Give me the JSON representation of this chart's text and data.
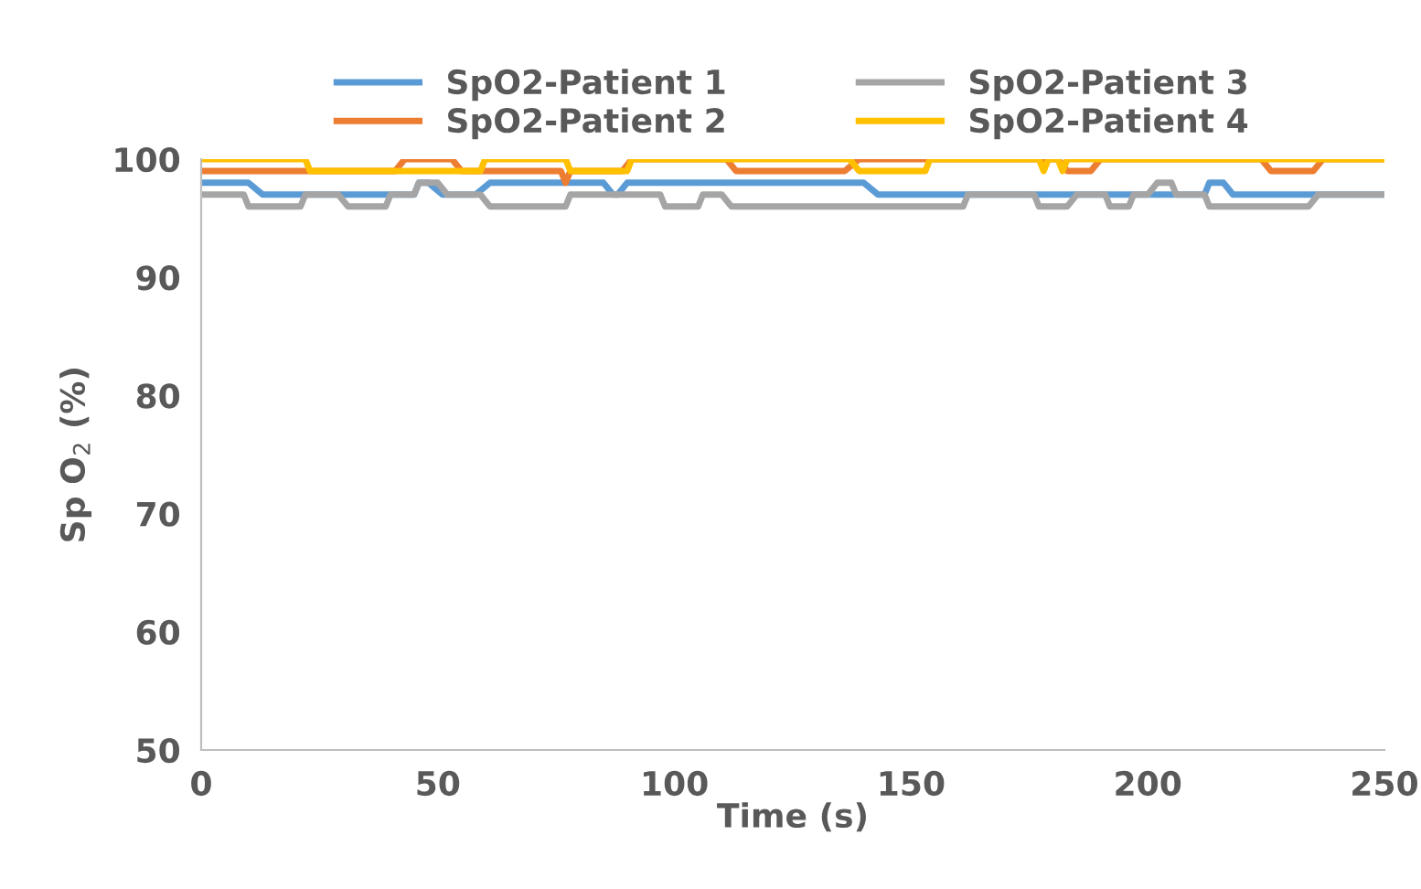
{
  "chart_data": {
    "type": "line",
    "xlabel": "Time (s)",
    "ylabel": "Sp O$_{2}$ (%)",
    "xlim": [
      0,
      250
    ],
    "ylim": [
      50,
      100
    ],
    "xticks": [
      0,
      50,
      100,
      150,
      200,
      250
    ],
    "yticks": [
      50,
      60,
      70,
      80,
      90,
      100
    ],
    "grid": false,
    "legend": "top",
    "marker": "none",
    "line_style": "solid",
    "series": [
      {
        "name": "SpO2-Patient 1",
        "color": "#5b9bd5",
        "x": [
          0,
          10,
          13,
          45,
          46,
          48,
          51,
          58,
          61,
          85,
          87,
          88,
          90,
          140,
          143,
          212,
          213,
          216,
          218,
          250
        ],
        "values": [
          98,
          98,
          97,
          97,
          98,
          98,
          97,
          97,
          98,
          98,
          97,
          97,
          98,
          98,
          97,
          97,
          98,
          98,
          97,
          97
        ]
      },
      {
        "name": "SpO2-Patient 2",
        "color": "#ed7d31",
        "x": [
          0,
          41,
          43,
          53,
          55,
          76,
          77,
          78,
          89,
          91,
          111,
          113,
          136,
          139,
          152,
          153,
          181,
          183,
          188,
          190,
          224,
          226,
          235,
          237,
          250
        ],
        "values": [
          99,
          99,
          100,
          100,
          99,
          99,
          98,
          99,
          99,
          100,
          100,
          99,
          99,
          100,
          100,
          100,
          100,
          99,
          99,
          100,
          100,
          99,
          99,
          100,
          100
        ]
      },
      {
        "name": "SpO2-Patient 3",
        "color": "#a5a5a5",
        "x": [
          0,
          9,
          10,
          21,
          22,
          29,
          31,
          39,
          40,
          45,
          46,
          50,
          52,
          59,
          61,
          77,
          78,
          97,
          98,
          105,
          106,
          110,
          112,
          161,
          162,
          176,
          177,
          183,
          185,
          191,
          192,
          196,
          197,
          200,
          202,
          205,
          206,
          212,
          213,
          234,
          236,
          250
        ],
        "values": [
          97,
          97,
          96,
          96,
          97,
          97,
          96,
          96,
          97,
          97,
          98,
          98,
          97,
          97,
          96,
          96,
          97,
          97,
          96,
          96,
          97,
          97,
          96,
          96,
          97,
          97,
          96,
          96,
          97,
          97,
          96,
          96,
          97,
          97,
          98,
          98,
          97,
          97,
          96,
          96,
          97,
          97
        ]
      },
      {
        "name": "SpO2-Patient 4",
        "color": "#ffc000",
        "x": [
          0,
          22,
          23,
          59,
          60,
          77,
          78,
          90,
          91,
          137,
          139,
          153,
          154,
          177,
          178,
          179,
          181,
          182,
          183,
          250
        ],
        "values": [
          100,
          100,
          99,
          99,
          100,
          100,
          99,
          99,
          100,
          100,
          99,
          99,
          100,
          100,
          99,
          100,
          100,
          99,
          100,
          100
        ]
      }
    ]
  }
}
